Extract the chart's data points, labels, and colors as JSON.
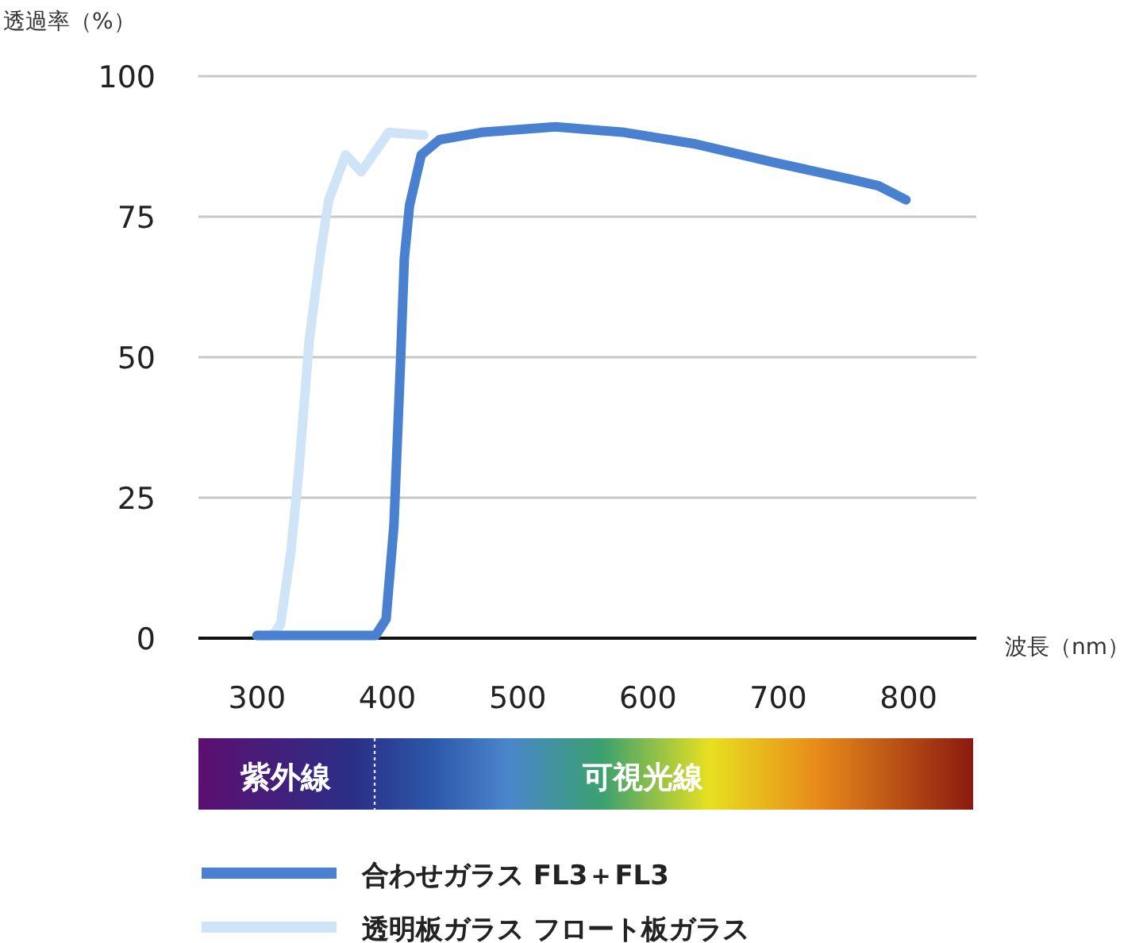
{
  "chart_data": {
    "type": "line",
    "ylabel": "透過率（%）",
    "xlabel": "波長（nm）",
    "xlim": [
      255,
      852
    ],
    "ylim": [
      0,
      100
    ],
    "xticks": [
      300,
      400,
      500,
      600,
      700,
      800
    ],
    "yticks": [
      0,
      25,
      50,
      75,
      100
    ],
    "grid": "y",
    "legend": "bottom",
    "annotations": [
      "紫外線",
      "可視光線"
    ],
    "series": [
      {
        "name": "合わせガラス FL3＋FL3",
        "color": "#4a80d0",
        "x": [
          300,
          391,
          399,
          405,
          410,
          413,
          417,
          426,
          440,
          472,
          529,
          582,
          635,
          696,
          757,
          777,
          798
        ],
        "values": [
          0.5,
          0.5,
          3.4,
          20,
          48.6,
          67.5,
          77,
          86,
          88.7,
          90,
          91,
          90,
          88,
          84.7,
          81.6,
          80.5,
          78
        ]
      },
      {
        "name": "透明板ガラス フロート板ガラス",
        "color": "#cfe4f7",
        "x": [
          300,
          312,
          318,
          326,
          332,
          340,
          349,
          355,
          368,
          380,
          389,
          401,
          428
        ],
        "values": [
          0.5,
          0.5,
          2.5,
          15.5,
          29.7,
          53,
          69,
          78,
          86,
          83,
          86,
          90,
          89.5
        ]
      }
    ]
  }
}
